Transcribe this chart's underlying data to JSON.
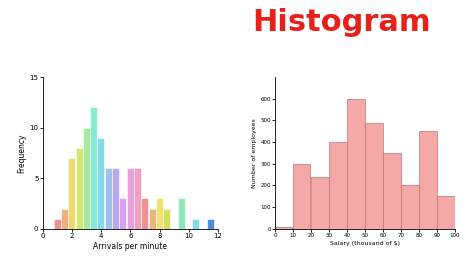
{
  "title": "Histogram",
  "title_color": "#e8201a",
  "title_fontsize": 22,
  "background_color": "#ffffff",
  "left_hist": {
    "bar_lefts": [
      0.75,
      1.25,
      1.75,
      2.25,
      2.75,
      3.25,
      3.75,
      4.25,
      4.75,
      5.25,
      5.75,
      6.25,
      6.75,
      7.25,
      7.75,
      8.25,
      9.25,
      10.25,
      11.25
    ],
    "bar_values": [
      1,
      2,
      7,
      8,
      10,
      12,
      9,
      6,
      6,
      3,
      6,
      6,
      3,
      2,
      3,
      2,
      3,
      1,
      1
    ],
    "bar_width": 0.48,
    "xlabel": "Arrivals per minute",
    "ylabel": "Frequency",
    "xlim": [
      0,
      12
    ],
    "ylim": [
      0,
      15
    ],
    "xticks": [
      0,
      2,
      4,
      6,
      8,
      10,
      12
    ],
    "yticks": [
      0,
      5,
      10,
      15
    ],
    "bar_colors": [
      "#f09090",
      "#f0b080",
      "#f0d870",
      "#d0e870",
      "#a8e8a0",
      "#80ecd0",
      "#80dce8",
      "#a0c0f0",
      "#b8a8f0",
      "#d8a0f0",
      "#e8a0d8",
      "#f0a0c0",
      "#f09090",
      "#f0b080",
      "#f4e070",
      "#d0e060",
      "#90e8b8",
      "#80d8ec",
      "#5090d8"
    ]
  },
  "right_hist": {
    "bin_lefts": [
      0,
      10,
      20,
      30,
      40,
      50,
      60,
      70,
      80,
      90
    ],
    "bin_width": 10,
    "bar_values": [
      10,
      300,
      240,
      400,
      600,
      490,
      350,
      200,
      450,
      150
    ],
    "xlabel": "Salary (thousand of $)",
    "ylabel": "Number of employees",
    "xlim": [
      0,
      100
    ],
    "ylim": [
      0,
      700
    ],
    "xticks": [
      0,
      10,
      20,
      30,
      40,
      50,
      60,
      70,
      80,
      90,
      100
    ],
    "yticks": [
      0,
      100,
      200,
      300,
      400,
      500,
      600
    ],
    "bar_color": "#f4a8a8",
    "bar_edge_color": "#c07070"
  }
}
